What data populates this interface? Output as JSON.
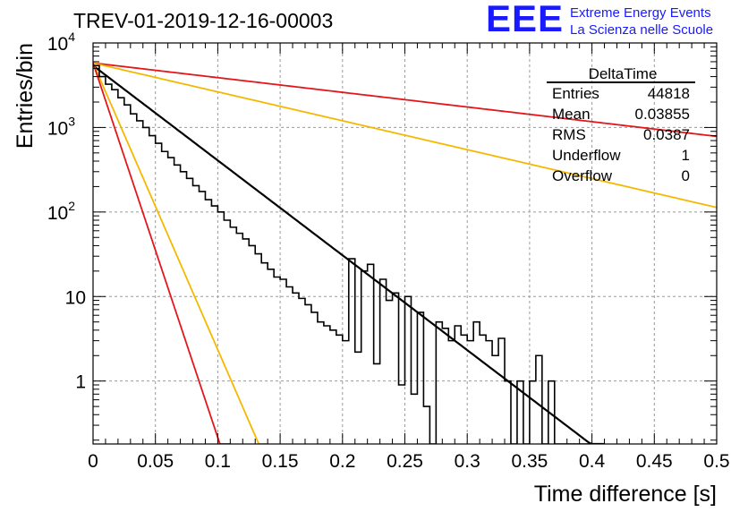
{
  "logo": {
    "mark": "EEE",
    "line1": "Extreme Energy Events",
    "line2": "La Scienza nelle Scuole"
  },
  "colors": {
    "histogram": "#000000",
    "fit": "#000000",
    "red_curves": "#e3171b",
    "orange_curves": "#f5b800",
    "grid": "#9a9a9a",
    "logo": "#1a1aff"
  },
  "chart_data": {
    "type": "line",
    "title": "TREV-01-2019-12-16-00003",
    "xlabel": "Time difference [s]",
    "ylabel": "Entries/bin",
    "xlim": [
      0,
      0.5
    ],
    "ylim": [
      0.18,
      10000
    ],
    "yscale": "log",
    "grid": true,
    "x_ticks": [
      "0",
      "0.05",
      "0.1",
      "0.15",
      "0.2",
      "0.25",
      "0.3",
      "0.35",
      "0.4",
      "0.45",
      "0.5"
    ],
    "y_ticks": [
      {
        "value": 10000,
        "base": "10",
        "exp": "4"
      },
      {
        "value": 1000,
        "base": "10",
        "exp": "3"
      },
      {
        "value": 100,
        "base": "10",
        "exp": "2"
      },
      {
        "value": 10,
        "base": "10",
        "exp": ""
      },
      {
        "value": 1,
        "base": "1",
        "exp": ""
      }
    ],
    "stats_box": {
      "title": "DeltaTime",
      "placement": "top-right",
      "rows": [
        {
          "label": "Entries",
          "value": "44818"
        },
        {
          "label": "Mean",
          "value": "0.03855"
        },
        {
          "label": "RMS",
          "value": "0.0387"
        },
        {
          "label": "Underflow",
          "value": "1"
        },
        {
          "label": "Overflow",
          "value": "0"
        }
      ]
    },
    "histogram": {
      "bin_width": 0.005,
      "x_start": 0,
      "values": [
        5400,
        4000,
        3250,
        2800,
        2250,
        1850,
        1450,
        1200,
        1000,
        800,
        650,
        520,
        440,
        360,
        300,
        250,
        205,
        175,
        140,
        118,
        100,
        80,
        66,
        56,
        48,
        40,
        32,
        25,
        21,
        17,
        16,
        13,
        11,
        9.5,
        8,
        6.5,
        5,
        4.5,
        4,
        3.5,
        3,
        2.5,
        2.2,
        2,
        1.8,
        1.6,
        1.4,
        1.2,
        1,
        0.9,
        0.8,
        0.7,
        0.55,
        0.5,
        0.45,
        0.4,
        0.35,
        0.3,
        0.27,
        0.24,
        0.22,
        0.2,
        0.19,
        0.18,
        0.18,
        0.18,
        0.18,
        0.18,
        0.18,
        0.18,
        0.18,
        0.18,
        0.18,
        0.18,
        0.18,
        0.18,
        0.18,
        0.18,
        0.18,
        0.18
      ],
      "fluctuations": [
        {
          "x": 0.205,
          "y": 28
        },
        {
          "x": 0.215,
          "y": 20
        },
        {
          "x": 0.22,
          "y": 24
        },
        {
          "x": 0.23,
          "y": 16
        },
        {
          "x": 0.235,
          "y": 9
        },
        {
          "x": 0.24,
          "y": 11
        },
        {
          "x": 0.25,
          "y": 10
        },
        {
          "x": 0.26,
          "y": 6.5
        },
        {
          "x": 0.27,
          "y": 0.18
        },
        {
          "x": 0.275,
          "y": 5
        },
        {
          "x": 0.28,
          "y": 4.2
        },
        {
          "x": 0.285,
          "y": 3
        },
        {
          "x": 0.29,
          "y": 4.5
        },
        {
          "x": 0.295,
          "y": 3.5
        },
        {
          "x": 0.3,
          "y": 3
        },
        {
          "x": 0.305,
          "y": 5
        },
        {
          "x": 0.31,
          "y": 3.5
        },
        {
          "x": 0.315,
          "y": 3
        },
        {
          "x": 0.32,
          "y": 2
        },
        {
          "x": 0.325,
          "y": 3.2
        },
        {
          "x": 0.33,
          "y": 1
        },
        {
          "x": 0.335,
          "y": 0.18
        },
        {
          "x": 0.34,
          "y": 1
        },
        {
          "x": 0.345,
          "y": 0.18
        },
        {
          "x": 0.35,
          "y": 1
        },
        {
          "x": 0.355,
          "y": 2
        },
        {
          "x": 0.36,
          "y": 0.18
        },
        {
          "x": 0.365,
          "y": 1
        },
        {
          "x": 0.37,
          "y": 0.18
        },
        {
          "x": 0.375,
          "y": 0.18
        }
      ]
    },
    "series": [
      {
        "color": "#e3171b",
        "type": "exp",
        "a": 5800,
        "tau": 0.25,
        "x0": 0,
        "x1": 0.5
      },
      {
        "color": "#f5b800",
        "type": "exp",
        "a": 5800,
        "tau": 0.127,
        "x0": 0,
        "x1": 0.5
      },
      {
        "color": "#000000",
        "type": "exp",
        "a": 5400,
        "tau": 0.0387,
        "x0": 0,
        "x1": 0.41
      },
      {
        "color": "#f5b800",
        "type": "exp",
        "a": 5800,
        "tau": 0.0128,
        "x0": 0,
        "x1": 0.14
      },
      {
        "color": "#e3171b",
        "type": "exp",
        "a": 5800,
        "tau": 0.0098,
        "x0": 0,
        "x1": 0.11
      }
    ]
  }
}
